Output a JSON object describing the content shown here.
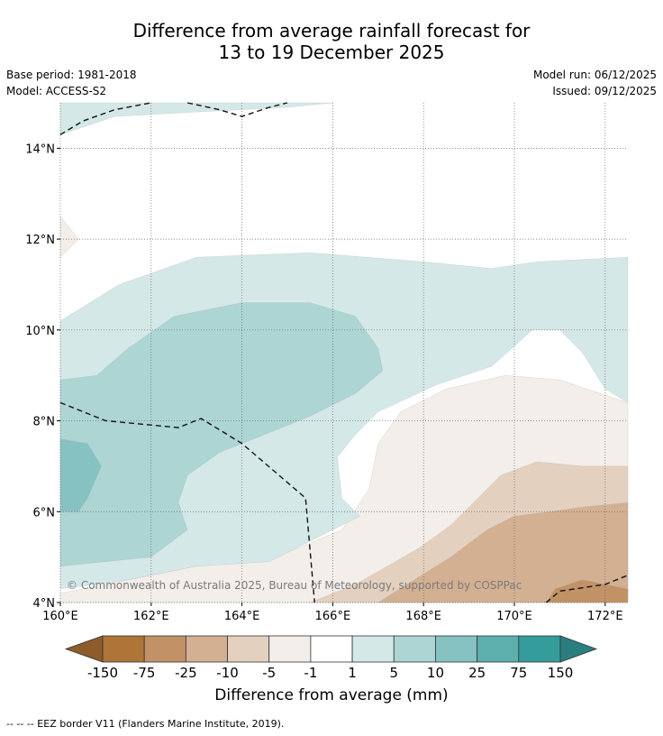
{
  "title": {
    "line1": "Difference from average rainfall forecast for",
    "line2": "13 to 19 December 2025"
  },
  "meta": {
    "base_period": "Base period: 1981-2018",
    "model": "Model: ACCESS-S2",
    "model_run": "Model run: 06/12/2025",
    "issued": "Issued: 09/12/2025"
  },
  "copyright": "© Commonwealth of Australia 2025, Bureau of Meteorology, supported by COSPPac",
  "footer": "--  --  -- EEZ border V11 (Flanders Marine Institute, 2019).",
  "colors": {
    "bin_-150_-75": "#ae7438",
    "bin_-75_-25": "#c19265",
    "bin_-25_-10": "#d3b092",
    "bin_-10_-5": "#e4d0bf",
    "bin_-5_-1": "#f3eee9",
    "bin_-1_1": "#ffffff",
    "bin_1_5": "#d4e8e7",
    "bin_5_10": "#acd5d4",
    "bin_10_25": "#86c2c1",
    "bin_25_75": "#5dafae",
    "bin_75_150": "#349c9b",
    "over_150": "#2a7f7e",
    "under_-150": "#8e5c2a"
  },
  "chart_data": {
    "type": "heatmap",
    "title": "Difference from average rainfall forecast for 13 to 19 December 2025",
    "colorbar_label": "Difference from average (mm)",
    "colorbar_ticks": [
      "-150",
      "-75",
      "-25",
      "-10",
      "-5",
      "-1",
      "1",
      "5",
      "10",
      "25",
      "75",
      "150"
    ],
    "xlim": [
      160,
      172.5
    ],
    "ylim": [
      4,
      15
    ],
    "x_ticks": [
      160,
      162,
      164,
      166,
      168,
      170,
      172
    ],
    "x_tick_labels": [
      "160°E",
      "162°E",
      "164°E",
      "166°E",
      "168°E",
      "170°E",
      "172°E"
    ],
    "y_ticks": [
      4,
      6,
      8,
      10,
      12,
      14
    ],
    "y_tick_labels": [
      "4°N",
      "6°N",
      "8°N",
      "10°N",
      "12°N",
      "14°N"
    ],
    "grid": true,
    "contours": [
      {
        "level": "bin_-5_-1",
        "points": [
          [
            160,
            4
          ],
          [
            172.5,
            4
          ],
          [
            172.5,
            8.4
          ],
          [
            171,
            8.9
          ],
          [
            169.8,
            9.0
          ],
          [
            168.5,
            8.7
          ],
          [
            167.5,
            8.2
          ],
          [
            167,
            7.5
          ],
          [
            166.8,
            6.5
          ],
          [
            166.2,
            5.6
          ],
          [
            165,
            5.1
          ],
          [
            163,
            4.8
          ],
          [
            161,
            4.4
          ],
          [
            160,
            4.2
          ]
        ]
      },
      {
        "level": "bin_-10_-5",
        "points": [
          [
            165.5,
            4
          ],
          [
            172.5,
            4
          ],
          [
            172.5,
            7.0
          ],
          [
            171.5,
            7.0
          ],
          [
            170.5,
            7.1
          ],
          [
            169.7,
            6.8
          ],
          [
            169.2,
            6.3
          ],
          [
            168.6,
            5.7
          ],
          [
            167.9,
            5.2
          ],
          [
            167.2,
            4.8
          ],
          [
            166.5,
            4.4
          ]
        ]
      },
      {
        "level": "bin_-25_-10",
        "points": [
          [
            167,
            4
          ],
          [
            172.5,
            4
          ],
          [
            172.5,
            6.2
          ],
          [
            171.5,
            6.1
          ],
          [
            170.8,
            6.0
          ],
          [
            170,
            5.9
          ],
          [
            169.4,
            5.6
          ],
          [
            168.6,
            5.0
          ],
          [
            167.8,
            4.5
          ]
        ]
      },
      {
        "level": "bin_-75_-25",
        "points": [
          [
            170.7,
            4
          ],
          [
            172.5,
            4
          ],
          [
            172.5,
            4.3
          ],
          [
            171.5,
            4.5
          ],
          [
            170.9,
            4.3
          ]
        ]
      },
      {
        "level": "bin_-5_-1",
        "points": [
          [
            160,
            11.6
          ],
          [
            160.4,
            12.0
          ],
          [
            160,
            12.5
          ]
        ]
      },
      {
        "level": "bin_1_5",
        "points": [
          [
            160,
            14.3
          ],
          [
            161.2,
            14.7
          ],
          [
            163,
            14.8
          ],
          [
            165,
            14.9
          ],
          [
            166,
            15
          ],
          [
            160,
            15
          ]
        ]
      },
      {
        "level": "bin_1_5",
        "points": [
          [
            160,
            10.2
          ],
          [
            161.3,
            11.0
          ],
          [
            163,
            11.6
          ],
          [
            165.5,
            11.7
          ],
          [
            168,
            11.5
          ],
          [
            169.5,
            11.35
          ],
          [
            170.5,
            11.5
          ],
          [
            172.5,
            11.6
          ],
          [
            172.5,
            8.4
          ],
          [
            172,
            8.7
          ],
          [
            171.5,
            9.5
          ],
          [
            171,
            10.0
          ],
          [
            170.4,
            10.0
          ],
          [
            169.5,
            9.2
          ],
          [
            168.3,
            8.8
          ],
          [
            167,
            8.2
          ],
          [
            166.5,
            7.7
          ],
          [
            166.1,
            7.2
          ],
          [
            166.2,
            6.3
          ],
          [
            166.6,
            5.9
          ],
          [
            165.8,
            5.5
          ],
          [
            164.6,
            4.9
          ],
          [
            163,
            4.8
          ],
          [
            161.5,
            4.5
          ],
          [
            160,
            4.3
          ]
        ]
      },
      {
        "level": "bin_5_10",
        "points": [
          [
            160,
            8.9
          ],
          [
            160.8,
            9.0
          ],
          [
            161.5,
            9.6
          ],
          [
            162.5,
            10.3
          ],
          [
            164,
            10.6
          ],
          [
            165.5,
            10.6
          ],
          [
            166.5,
            10.3
          ],
          [
            167,
            9.6
          ],
          [
            167.1,
            9.1
          ],
          [
            166.5,
            8.6
          ],
          [
            165.5,
            8.1
          ],
          [
            164.5,
            7.7
          ],
          [
            163.5,
            7.3
          ],
          [
            162.8,
            6.8
          ],
          [
            162.6,
            6.2
          ],
          [
            162.8,
            5.6
          ],
          [
            162,
            5.0
          ],
          [
            160,
            4.8
          ]
        ]
      },
      {
        "level": "bin_10_25",
        "points": [
          [
            160,
            7.6
          ],
          [
            160.6,
            7.5
          ],
          [
            160.9,
            7.0
          ],
          [
            160.6,
            6.3
          ],
          [
            160.4,
            6.0
          ],
          [
            160,
            6.0
          ]
        ]
      }
    ],
    "eez_borders": [
      [
        [
          160,
          14.3
        ],
        [
          160.5,
          14.6
        ],
        [
          161.2,
          14.85
        ],
        [
          162,
          15
        ]
      ],
      [
        [
          162.8,
          15
        ],
        [
          163.5,
          14.85
        ],
        [
          164,
          14.7
        ],
        [
          164.6,
          14.9
        ],
        [
          165,
          15
        ]
      ],
      [
        [
          160,
          8.4
        ],
        [
          161,
          8.0
        ],
        [
          162.6,
          7.85
        ],
        [
          163.1,
          8.05
        ],
        [
          164,
          7.5
        ],
        [
          165.4,
          6.3
        ],
        [
          165.6,
          4
        ]
      ],
      [
        [
          170.7,
          4
        ],
        [
          171,
          4.25
        ],
        [
          172,
          4.4
        ],
        [
          172.5,
          4.6
        ]
      ]
    ]
  }
}
